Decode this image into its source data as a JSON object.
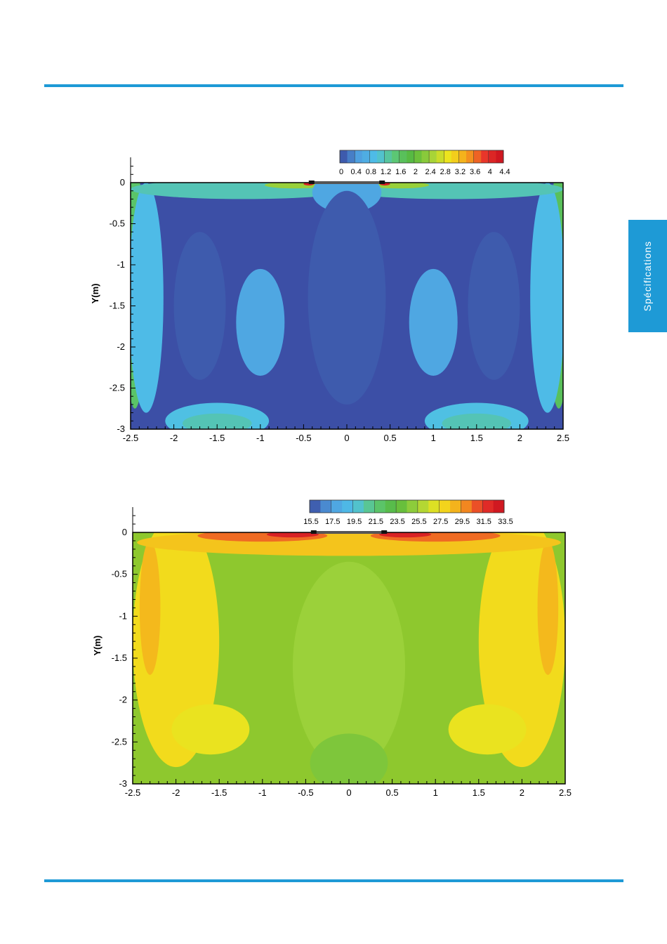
{
  "page": {
    "accent_color": "#1e9ad6",
    "side_tab_label": "Spécifications"
  },
  "chart_data": [
    {
      "type": "heatmap",
      "title": "",
      "xlabel": "",
      "ylabel": "Y(m)",
      "xlim": [
        -2.5,
        2.5
      ],
      "ylim": [
        -3,
        0.25
      ],
      "x_ticks": [
        "-2.5",
        "-2",
        "-1.5",
        "-1",
        "-0.5",
        "0",
        "0.5",
        "1",
        "1.5",
        "2",
        "2.5"
      ],
      "y_ticks": [
        "0",
        "-0.5",
        "-1",
        "-1.5",
        "-2",
        "-2.5",
        "-3"
      ],
      "colorbar": {
        "labels": [
          "0",
          "0.4",
          "0.8",
          "1.2",
          "1.6",
          "2",
          "2.4",
          "2.8",
          "3.2",
          "3.6",
          "4",
          "4.4"
        ],
        "min": 0,
        "max": 4.4
      },
      "colormap": [
        "#3a4aa0",
        "#4f9fe0",
        "#4ec0e8",
        "#5cc878",
        "#56b83c",
        "#9fd23a",
        "#f2e51c",
        "#f5a21c",
        "#e8342a",
        "#c8101e"
      ],
      "background_color": "#3c4fa6",
      "regions": [
        {
          "label": "wall-left",
          "cx": -2.45,
          "cy": -1.3,
          "rx": 0.13,
          "ry": 1.45,
          "value": 1.6
        },
        {
          "label": "wall-right",
          "cx": 2.45,
          "cy": -1.3,
          "rx": 0.13,
          "ry": 1.45,
          "value": 1.7
        },
        {
          "label": "wall-left-inner",
          "cx": -2.32,
          "cy": -1.4,
          "rx": 0.2,
          "ry": 1.4,
          "value": 0.9
        },
        {
          "label": "wall-right-inner",
          "cx": 2.32,
          "cy": -1.4,
          "rx": 0.2,
          "ry": 1.4,
          "value": 0.9
        },
        {
          "label": "jet-left",
          "cx": -1.2,
          "cy": -0.08,
          "rx": 1.3,
          "ry": 0.12,
          "value": 1.2
        },
        {
          "label": "jet-right",
          "cx": 1.2,
          "cy": -0.08,
          "rx": 1.3,
          "ry": 0.12,
          "value": 1.2
        },
        {
          "label": "jet-left-core",
          "cx": -0.6,
          "cy": -0.03,
          "rx": 0.35,
          "ry": 0.04,
          "value": 2.4
        },
        {
          "label": "jet-right-core",
          "cx": 0.6,
          "cy": -0.03,
          "rx": 0.35,
          "ry": 0.04,
          "value": 2.4
        },
        {
          "label": "floor-left",
          "cx": -1.5,
          "cy": -2.9,
          "rx": 0.6,
          "ry": 0.22,
          "value": 1.0
        },
        {
          "label": "floor-right",
          "cx": 1.5,
          "cy": -2.9,
          "rx": 0.6,
          "ry": 0.22,
          "value": 1.0
        },
        {
          "label": "floor-left-core",
          "cx": -1.5,
          "cy": -2.93,
          "rx": 0.4,
          "ry": 0.12,
          "value": 1.2
        },
        {
          "label": "floor-right-core",
          "cx": 1.5,
          "cy": -2.93,
          "rx": 0.4,
          "ry": 0.12,
          "value": 1.2
        },
        {
          "label": "lobe-left",
          "cx": -1.0,
          "cy": -1.7,
          "rx": 0.28,
          "ry": 0.65,
          "value": 0.6
        },
        {
          "label": "lobe-right",
          "cx": 1.0,
          "cy": -1.7,
          "rx": 0.28,
          "ry": 0.65,
          "value": 0.6
        },
        {
          "label": "outlet-center",
          "cx": 0.0,
          "cy": -0.12,
          "rx": 0.4,
          "ry": 0.25,
          "value": 0.6
        },
        {
          "label": "core-dark-left",
          "cx": -1.7,
          "cy": -1.5,
          "rx": 0.3,
          "ry": 0.9,
          "value": 0.1
        },
        {
          "label": "core-dark-right",
          "cx": 1.7,
          "cy": -1.5,
          "rx": 0.3,
          "ry": 0.9,
          "value": 0.1
        },
        {
          "label": "core-dark-center",
          "cx": 0.0,
          "cy": -1.4,
          "rx": 0.45,
          "ry": 1.3,
          "value": 0.1
        },
        {
          "label": "jet-tip-left",
          "cx": -0.44,
          "cy": -0.015,
          "rx": 0.06,
          "ry": 0.02,
          "value": 4.2
        },
        {
          "label": "jet-tip-right",
          "cx": 0.44,
          "cy": -0.015,
          "rx": 0.06,
          "ry": 0.02,
          "value": 4.2
        }
      ]
    },
    {
      "type": "heatmap",
      "title": "",
      "xlabel": "",
      "ylabel": "Y(m)",
      "xlim": [
        -2.5,
        2.5
      ],
      "ylim": [
        -3,
        0.25
      ],
      "x_ticks": [
        "-2.5",
        "-2",
        "-1.5",
        "-1",
        "-0.5",
        "0",
        "0.5",
        "1",
        "1.5",
        "2",
        "2.5"
      ],
      "y_ticks": [
        "0",
        "-0.5",
        "-1",
        "-1.5",
        "-2",
        "-2.5",
        "-3"
      ],
      "colorbar": {
        "labels": [
          "15.5",
          "17.5",
          "19.5",
          "21.5",
          "23.5",
          "25.5",
          "27.5",
          "29.5",
          "31.5",
          "33.5"
        ],
        "min": 15.5,
        "max": 33.5
      },
      "colormap": [
        "#3a4aa0",
        "#4f9fe0",
        "#4ec0e8",
        "#5cc878",
        "#56b83c",
        "#9fd23a",
        "#f2e51c",
        "#f5a21c",
        "#e8342a",
        "#c8101e"
      ],
      "background_color": "#8ec82e",
      "regions": [
        {
          "label": "side-left",
          "cx": -2.0,
          "cy": -1.3,
          "rx": 0.5,
          "ry": 1.5,
          "value": 27.8
        },
        {
          "label": "side-right",
          "cx": 2.0,
          "cy": -1.3,
          "rx": 0.5,
          "ry": 1.5,
          "value": 27.8
        },
        {
          "label": "side-left-hot",
          "cx": -2.3,
          "cy": -0.9,
          "rx": 0.12,
          "ry": 0.8,
          "value": 28.8
        },
        {
          "label": "side-right-hot",
          "cx": 2.3,
          "cy": -0.9,
          "rx": 0.12,
          "ry": 0.8,
          "value": 28.8
        },
        {
          "label": "lobe-left",
          "cx": -1.6,
          "cy": -2.35,
          "rx": 0.45,
          "ry": 0.3,
          "value": 27.3
        },
        {
          "label": "lobe-right",
          "cx": 1.6,
          "cy": -2.35,
          "rx": 0.45,
          "ry": 0.3,
          "value": 27.3
        },
        {
          "label": "top-band",
          "cx": 0.0,
          "cy": -0.12,
          "rx": 2.45,
          "ry": 0.16,
          "value": 28.5
        },
        {
          "label": "center-column",
          "cx": 0.0,
          "cy": -1.6,
          "rx": 0.65,
          "ry": 1.25,
          "value": 25.4
        },
        {
          "label": "center-floor",
          "cx": 0.0,
          "cy": -2.75,
          "rx": 0.45,
          "ry": 0.35,
          "value": 24.6
        },
        {
          "label": "jet-left",
          "cx": -1.0,
          "cy": -0.04,
          "rx": 0.75,
          "ry": 0.07,
          "value": 30.5
        },
        {
          "label": "jet-right",
          "cx": 1.0,
          "cy": -0.04,
          "rx": 0.75,
          "ry": 0.07,
          "value": 30.5
        },
        {
          "label": "jet-left-core",
          "cx": -0.65,
          "cy": -0.025,
          "rx": 0.3,
          "ry": 0.035,
          "value": 32.5
        },
        {
          "label": "jet-right-core",
          "cx": 0.65,
          "cy": -0.025,
          "rx": 0.3,
          "ry": 0.035,
          "value": 32.5
        }
      ]
    }
  ]
}
